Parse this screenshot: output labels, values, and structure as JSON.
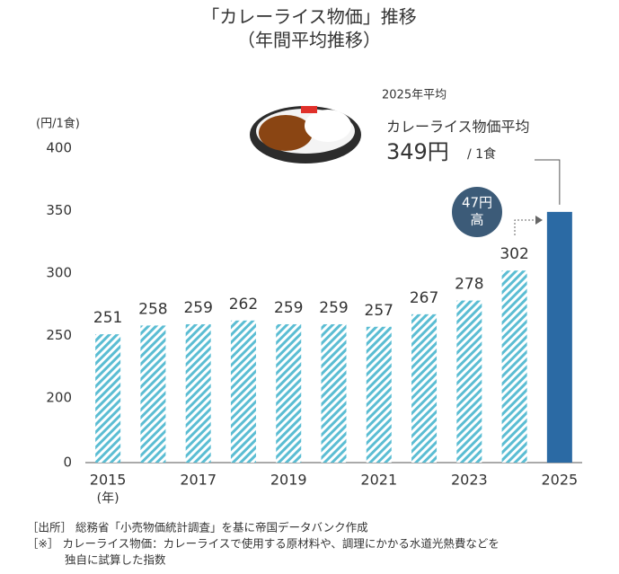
{
  "chart_data": {
    "type": "bar",
    "title": "「カレーライス物価」推移",
    "subtitle": "（年間平均推移）",
    "ylabel": "(円/1食)",
    "xlabel": "(年)",
    "categories": [
      "2015",
      null,
      "2017",
      null,
      "2019",
      null,
      "2021",
      null,
      "2023",
      null,
      "2025"
    ],
    "values": [
      251,
      258,
      259,
      262,
      259,
      259,
      257,
      267,
      278,
      302,
      349
    ],
    "color": "#5bbdd3",
    "ylim": [
      0,
      400
    ],
    "yticks": [
      0,
      200,
      250,
      300,
      350,
      400
    ],
    "axis_break": [
      0,
      200
    ],
    "highlight": {
      "index": 10,
      "color": "#2b6aa4",
      "heading": "2025年平均",
      "name": "カレーライス物価平均",
      "value_label": "349円",
      "unit": "/ 1食",
      "badge": [
        "47円",
        "高"
      ]
    },
    "notes": [
      "［出所］ 総務省「小売物価統計調査」を基に帝国データバンク作成",
      "［※］ カレーライス物価：カレーライスで使用する原材料や、調理にかかる水道光熱費などを",
      "独自に試算した指数"
    ]
  }
}
